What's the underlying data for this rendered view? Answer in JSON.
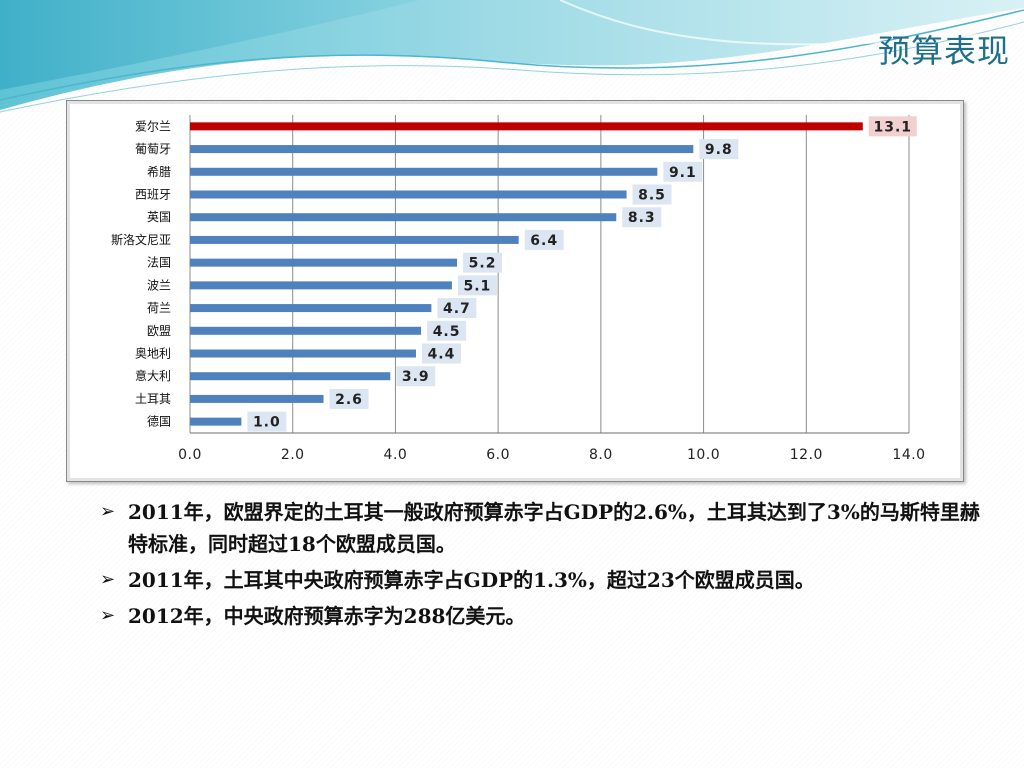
{
  "slide": {
    "title": "预算表现"
  },
  "colors": {
    "highlight_bar": "#c00000",
    "bar": "#4f81bd",
    "highlight_label_bg": "#f2d0cf",
    "label_bg": "#dce6f2",
    "title": "#1f6f8b"
  },
  "chart_data": {
    "type": "bar",
    "orientation": "horizontal",
    "categories": [
      "爱尔兰",
      "葡萄牙",
      "希腊",
      "西班牙",
      "英国",
      "斯洛文尼亚",
      "法国",
      "波兰",
      "荷兰",
      "欧盟",
      "奥地利",
      "意大利",
      "土耳其",
      "德国"
    ],
    "values": [
      13.1,
      9.8,
      9.1,
      8.5,
      8.3,
      6.4,
      5.2,
      5.1,
      4.7,
      4.5,
      4.4,
      3.9,
      2.6,
      1.0
    ],
    "value_labels": [
      "13.1",
      "9.8",
      "9.1",
      "8.5",
      "8.3",
      "6.4",
      "5.2",
      "5.1",
      "4.7",
      "4.5",
      "4.4",
      "3.9",
      "2.6",
      "1.0"
    ],
    "highlight_index": 0,
    "xlim": [
      0,
      14
    ],
    "xticks": [
      "0.0",
      "2.0",
      "4.0",
      "6.0",
      "8.0",
      "10.0",
      "12.0",
      "14.0"
    ],
    "grid": "vertical",
    "legend": "none"
  },
  "bullets": [
    "2011年，欧盟界定的土耳其一般政府预算赤字占GDP的2.6%，土耳其达到了3%的马斯特里赫特标准，同时超过18个欧盟成员国。",
    "2011年，土耳其中央政府预算赤字占GDP的1.3%，超过23个欧盟成员国。",
    "2012年，中央政府预算赤字为288亿美元。"
  ],
  "bullet_icon": "arrow-bullet-icon"
}
